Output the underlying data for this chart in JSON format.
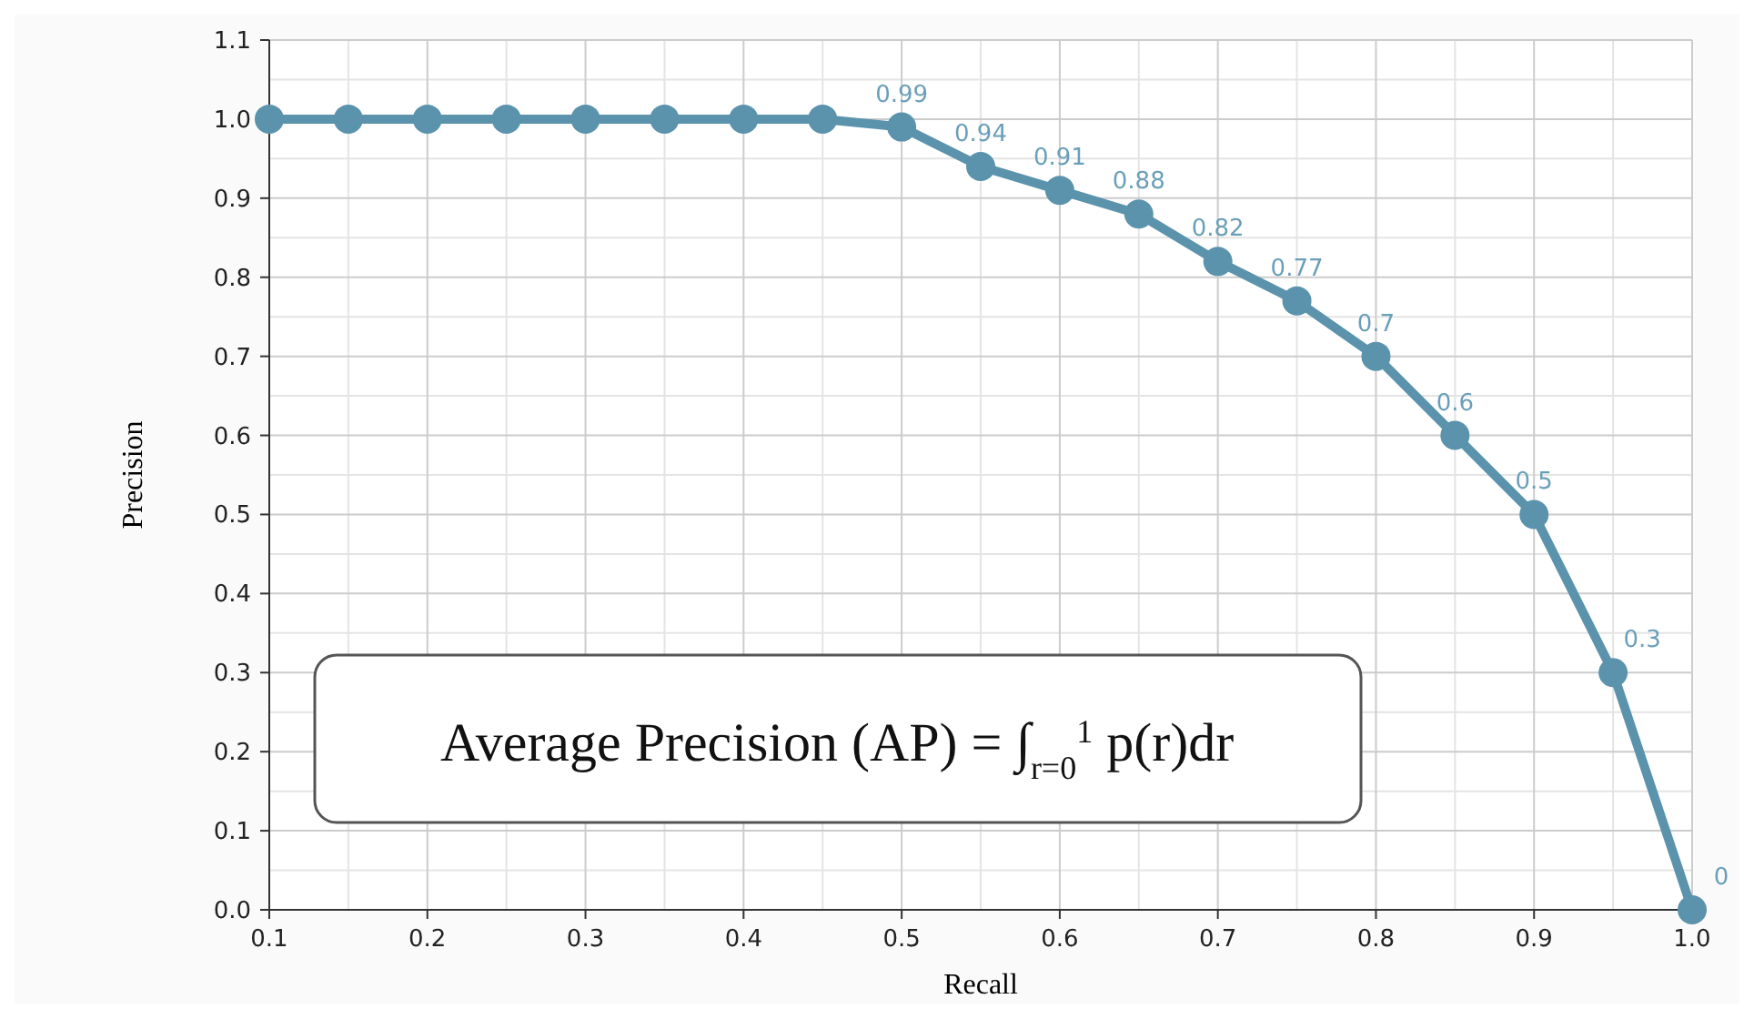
{
  "chart_data": {
    "type": "line",
    "xlabel": "Recall",
    "ylabel": "Precision",
    "x": [
      0.1,
      0.15,
      0.2,
      0.25,
      0.3,
      0.35,
      0.4,
      0.45,
      0.5,
      0.55,
      0.6,
      0.65,
      0.7,
      0.75,
      0.8,
      0.85,
      0.9,
      0.95,
      1.0
    ],
    "series": [
      {
        "color": "#5b93ad",
        "values": [
          1,
          1,
          1,
          1,
          1,
          1,
          1,
          1,
          0.99,
          0.94,
          0.91,
          0.88,
          0.82,
          0.77,
          0.7,
          0.6,
          0.5,
          0.3,
          0
        ],
        "value_labels": [
          null,
          null,
          null,
          null,
          null,
          null,
          null,
          null,
          "0.99",
          "0.94",
          "0.91",
          "0.88",
          "0.82",
          "0.77",
          "0.7",
          "0.6",
          "0.5",
          "0.3",
          "0"
        ]
      }
    ],
    "xlim": [
      0.1,
      1.0
    ],
    "ylim": [
      0,
      1.1
    ],
    "xticks": [
      0.1,
      0.2,
      0.3,
      0.4,
      0.5,
      0.6,
      0.7,
      0.8,
      0.9,
      {
        "value": 1.0,
        "label": "1.0"
      }
    ],
    "yticks": [
      {
        "value": 0,
        "label": "0.0"
      },
      0.1,
      0.2,
      0.3,
      0.4,
      0.5,
      0.6,
      0.7,
      0.8,
      0.9,
      {
        "value": 1.0,
        "label": "1.0"
      },
      1.1
    ],
    "grid": true,
    "marker": "circle",
    "line_style": "solid",
    "annotations": [
      "Average Precision (AP) = ∫$_{r=0}$$^{1}$ p(r)dr"
    ]
  }
}
